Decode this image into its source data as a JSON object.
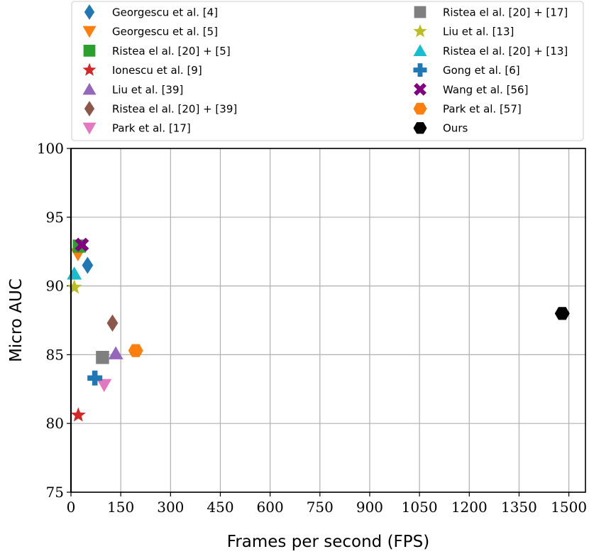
{
  "chart_data": {
    "type": "scatter",
    "title": "",
    "xlabel": "Frames per second (FPS)",
    "ylabel": "Micro AUC",
    "xlim": [
      0,
      1550
    ],
    "ylim": [
      75,
      100
    ],
    "xticks": [
      0,
      150,
      300,
      450,
      600,
      750,
      900,
      1050,
      1200,
      1350,
      1500
    ],
    "yticks": [
      75,
      80,
      85,
      90,
      95,
      100
    ],
    "grid": true,
    "legend_position": "top",
    "series": [
      {
        "name": "Georgescu et al. [4]",
        "marker": "diamond",
        "color": "#1f77b4",
        "x": 50,
        "y": 91.5
      },
      {
        "name": "Georgescu et al. [5]",
        "marker": "triangle-down",
        "color": "#ff7f0e",
        "x": 21,
        "y": 92.3
      },
      {
        "name": "Ristea el al. [20] + [5]",
        "marker": "square",
        "color": "#2ca02c",
        "x": 25,
        "y": 92.9
      },
      {
        "name": "Ionescu et al. [9]",
        "marker": "star",
        "color": "#d62728",
        "x": 22,
        "y": 80.6
      },
      {
        "name": "Liu et al. [39]",
        "marker": "triangle-up",
        "color": "#9467bd",
        "x": 135,
        "y": 85.1
      },
      {
        "name": "Ristea el al. [20] + [39]",
        "marker": "diamond",
        "color": "#8c564b",
        "x": 125,
        "y": 87.3
      },
      {
        "name": "Park et al. [17]",
        "marker": "triangle-down",
        "color": "#e377c2",
        "x": 100,
        "y": 82.8
      },
      {
        "name": "Ristea el al. [20] + [17]",
        "marker": "square",
        "color": "#7f7f7f",
        "x": 95,
        "y": 84.8
      },
      {
        "name": "Liu et al. [13]",
        "marker": "star",
        "color": "#bcbd22",
        "x": 10,
        "y": 89.9
      },
      {
        "name": "Ristea el al. [20] + [13]",
        "marker": "triangle-up",
        "color": "#17becf",
        "x": 10,
        "y": 90.9
      },
      {
        "name": "Gong et al. [6]",
        "marker": "plus",
        "color": "#1f77b4",
        "x": 72,
        "y": 83.3
      },
      {
        "name": "Wang et al. [56]",
        "marker": "x",
        "color": "#800080",
        "x": 33,
        "y": 93.0
      },
      {
        "name": "Park et al. [57]",
        "marker": "hexagon",
        "color": "#ff7f0e",
        "x": 195,
        "y": 85.3
      },
      {
        "name": "Ours",
        "marker": "hexagon",
        "color": "#000000",
        "x": 1480,
        "y": 88.0
      }
    ]
  }
}
